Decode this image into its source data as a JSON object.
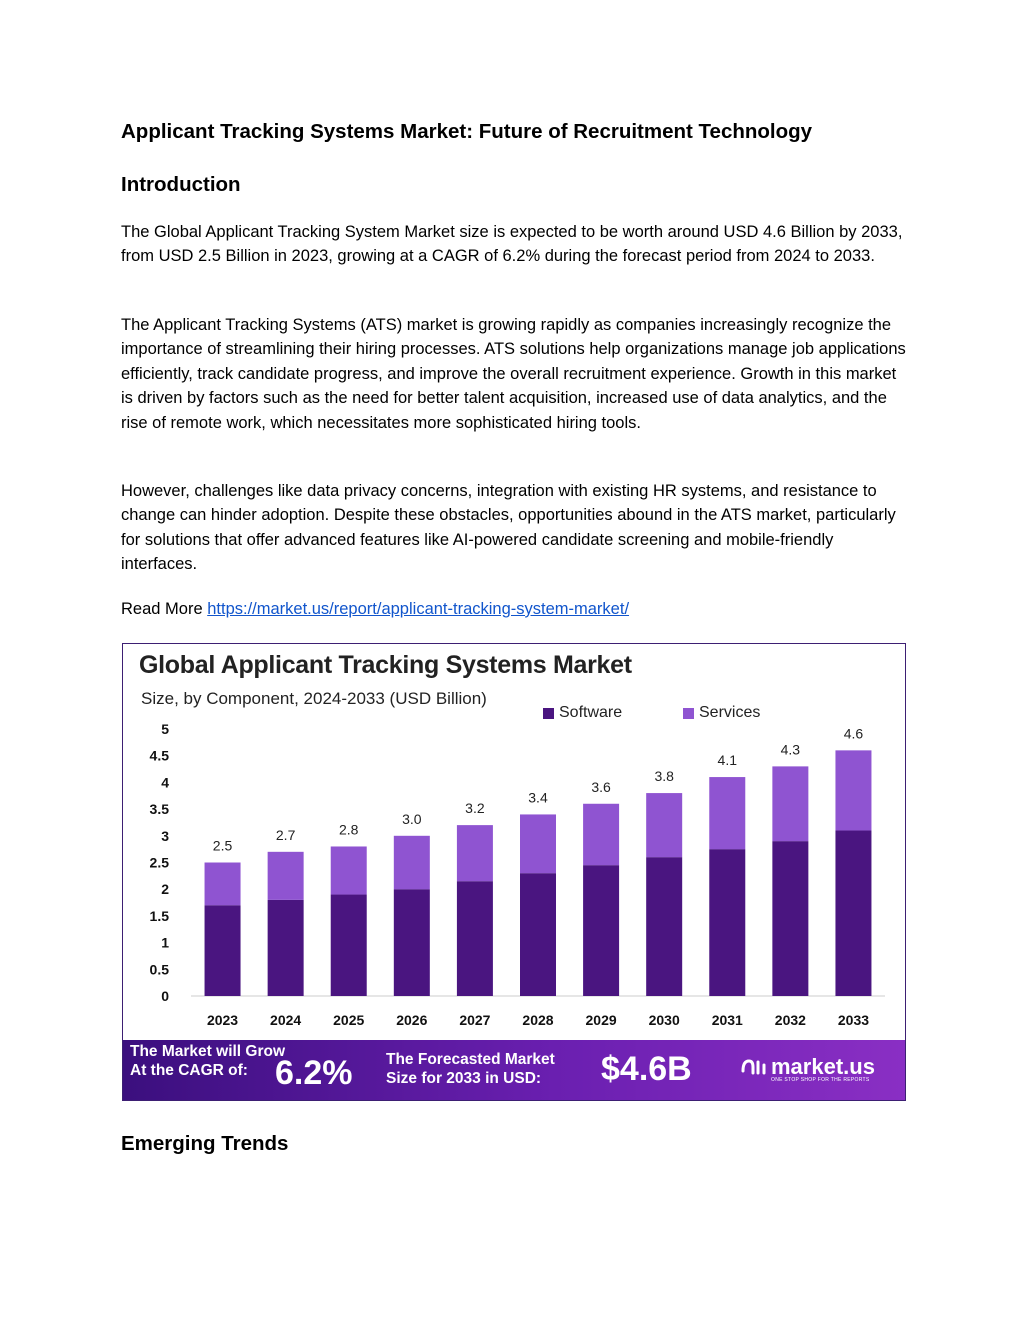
{
  "doc": {
    "title": "Applicant Tracking Systems Market: Future of Recruitment Technology",
    "intro_heading": "Introduction",
    "paragraphs": [
      "The Global Applicant Tracking System Market size is expected to be worth around USD 4.6 Billion by 2033, from USD 2.5 Billion in 2023, growing at a CAGR of 6.2% during the forecast period from 2024 to 2033.",
      "The Applicant Tracking Systems (ATS) market is growing rapidly as companies increasingly recognize the importance of streamlining their hiring processes. ATS solutions help organizations manage job applications efficiently, track candidate progress, and improve the overall recruitment experience. Growth in this market is driven by factors such as the need for better talent acquisition, increased use of data analytics, and the rise of remote work, which necessitates more sophisticated hiring tools.",
      "However, challenges like data privacy concerns, integration with existing HR systems, and resistance to change can hinder adoption. Despite these obstacles, opportunities abound in the ATS market, particularly for solutions that offer advanced features like AI-powered candidate screening and mobile-friendly interfaces."
    ],
    "read_more_label": "Read More",
    "read_more_url": "https://market.us/report/applicant-tracking-system-market/",
    "trends_heading": "Emerging Trends"
  },
  "infographic": {
    "footer_left": [
      "The Market will Grow",
      "At the CAGR of:"
    ],
    "cagr": "6.2%",
    "footer_mid": [
      "The Forecasted Market",
      "Size for 2033 in USD:"
    ],
    "forecast": "$4.6B",
    "logo_text": "market.us",
    "logo_tagline": "ONE STOP SHOP FOR THE REPORTS"
  },
  "chart_data": {
    "type": "bar",
    "stacked": true,
    "title": "Global Applicant Tracking Systems Market",
    "subtitle": "Size, by Component, 2024-2033 (USD Billion)",
    "categories": [
      "2023",
      "2024",
      "2025",
      "2026",
      "2027",
      "2028",
      "2029",
      "2030",
      "2031",
      "2032",
      "2033"
    ],
    "series": [
      {
        "name": "Software",
        "color": "#4a1580",
        "values": [
          1.7,
          1.8,
          1.9,
          2.0,
          2.15,
          2.3,
          2.45,
          2.6,
          2.75,
          2.9,
          3.1
        ]
      },
      {
        "name": "Services",
        "color": "#8f54d1",
        "values": [
          0.8,
          0.9,
          0.9,
          1.0,
          1.05,
          1.1,
          1.15,
          1.2,
          1.35,
          1.4,
          1.5
        ]
      }
    ],
    "totals": [
      "2.5",
      "2.7",
      "2.8",
      "3.0",
      "3.2",
      "3.4",
      "3.6",
      "3.8",
      "4.1",
      "4.3",
      "4.6"
    ],
    "total_values": [
      2.5,
      2.7,
      2.8,
      3.0,
      3.2,
      3.4,
      3.6,
      3.8,
      4.1,
      4.3,
      4.6
    ],
    "yticks": [
      "0",
      "0.5",
      "1",
      "1.5",
      "2",
      "2.5",
      "3",
      "3.5",
      "4",
      "4.5",
      "5"
    ],
    "ylim": [
      0,
      5
    ],
    "legend_position": "top-right",
    "grid": false
  }
}
